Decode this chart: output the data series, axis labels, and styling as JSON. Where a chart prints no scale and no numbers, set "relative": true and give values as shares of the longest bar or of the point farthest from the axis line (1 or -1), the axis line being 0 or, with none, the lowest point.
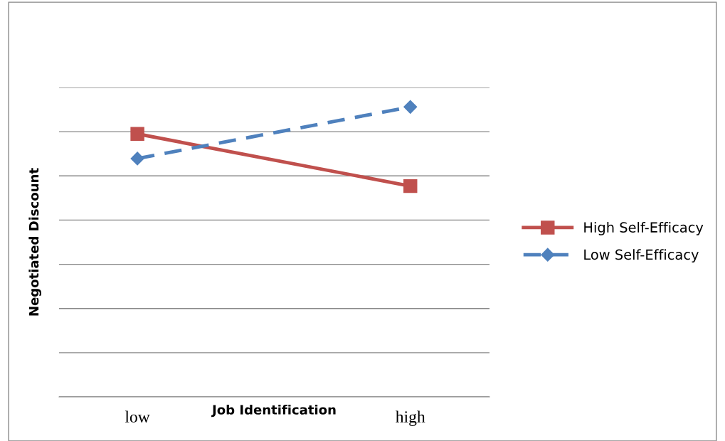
{
  "chart_data": {
    "type": "line",
    "relative": true,
    "xlabel": "Job Identification",
    "ylabel": "Negotiated Discount",
    "categories": [
      "low",
      "high"
    ],
    "grid": "y",
    "legend": "right",
    "series": [
      {
        "name": "High Self-Efficacy",
        "color": "#c0504d",
        "values": [
          0.907,
          0.727
        ],
        "marker": "square",
        "line_style": "solid"
      },
      {
        "name": "Low Self-Efficacy",
        "color": "#4f81bd",
        "values": [
          0.822,
          1.0
        ],
        "marker": "diamond",
        "line_style": "dashed"
      }
    ]
  }
}
